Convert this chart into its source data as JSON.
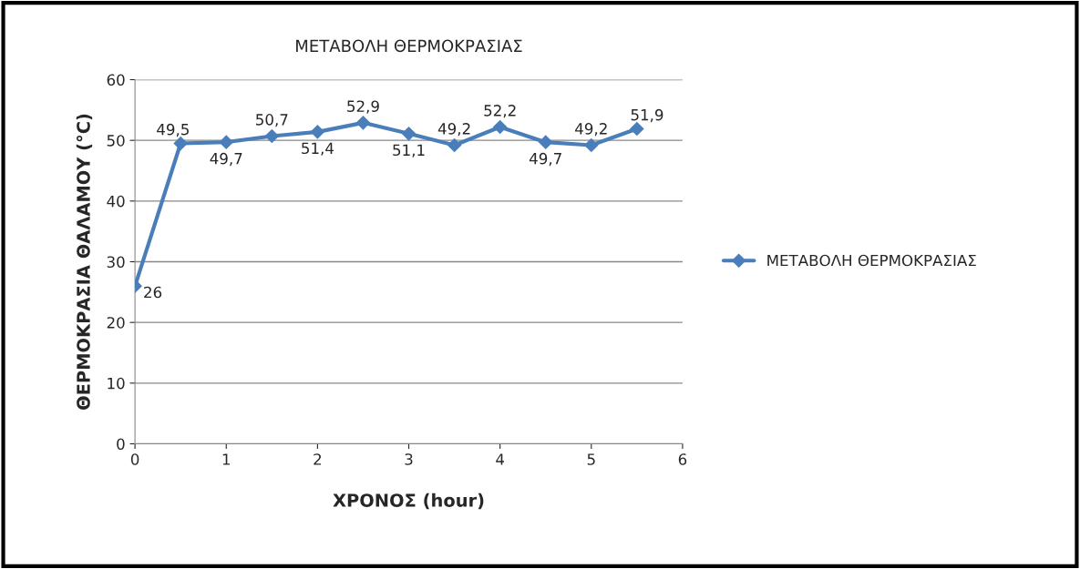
{
  "chart_data": {
    "type": "line",
    "title": "ΜΕΤΑΒΟΛΗ ΘΕΡΜΟΚΡΑΣΙΑΣ",
    "xlabel": "ΧΡΟΝΟΣ (hour)",
    "ylabel": "ΘΕΡΜΟΚΡΑΣΙΑ ΘΑΛΑΜΟΥ (°C)",
    "x": [
      0,
      0.5,
      1,
      1.5,
      2,
      2.5,
      3,
      3.5,
      4,
      4.5,
      5,
      5.5
    ],
    "series": [
      {
        "name": "ΜΕΤΑΒΟΛΗ ΘΕΡΜΟΚΡΑΣΙΑΣ",
        "color": "#4a7ebb",
        "values": [
          26,
          49.5,
          49.7,
          50.7,
          51.4,
          52.9,
          51.1,
          49.2,
          52.2,
          49.7,
          49.2,
          51.9
        ],
        "value_labels": [
          "26",
          "49,5",
          "49,7",
          "50,7",
          "51,4",
          "52,9",
          "51,1",
          "49,2",
          "52,2",
          "49,7",
          "49,2",
          "51,9"
        ]
      }
    ],
    "xlim": [
      0,
      6
    ],
    "xticks": [
      0,
      1,
      2,
      3,
      4,
      5,
      6
    ],
    "ylim": [
      0,
      60
    ],
    "yticks": [
      0,
      10,
      20,
      30,
      40,
      50,
      60
    ],
    "grid": "y",
    "legend": "right",
    "marker": "diamond",
    "line_style": "solid"
  }
}
